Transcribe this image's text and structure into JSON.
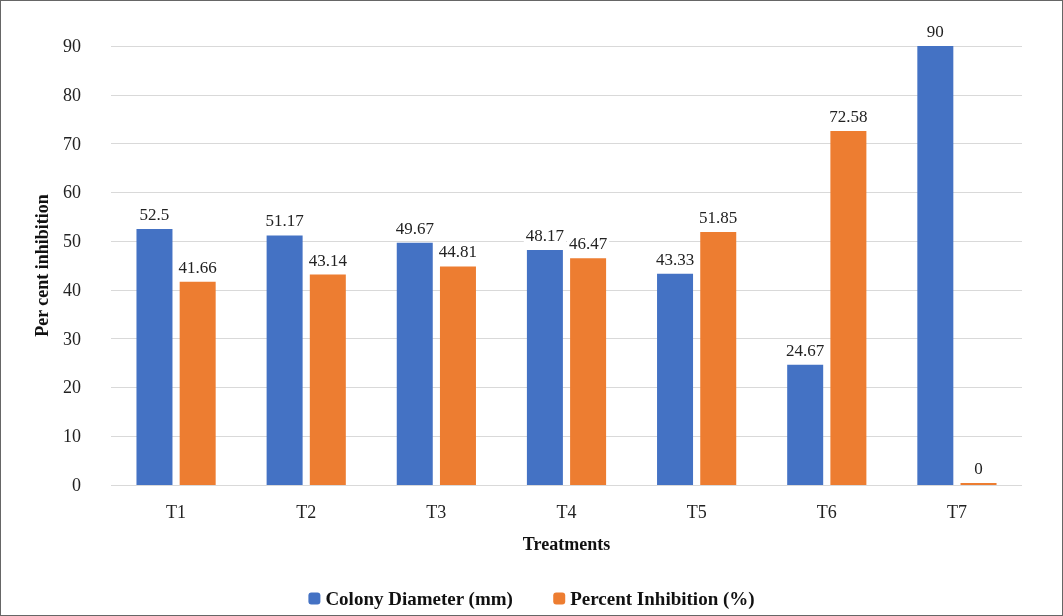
{
  "chart_data": {
    "type": "bar",
    "xlabel": "Treatments",
    "ylabel": "Per cent inhibition",
    "categories": [
      "T1",
      "T2",
      "T3",
      "T4",
      "T5",
      "T6",
      "T7"
    ],
    "series": [
      {
        "name": "Colony Diameter (mm)",
        "color": "#4472c4",
        "values": [
          52.5,
          51.17,
          49.67,
          48.17,
          43.33,
          24.67,
          90
        ]
      },
      {
        "name": "Percent Inhibition (%)",
        "color": "#ed7d31",
        "values": [
          41.66,
          43.14,
          44.81,
          46.47,
          51.85,
          72.58,
          0
        ]
      }
    ],
    "ylim": [
      0,
      90
    ],
    "yticks": [
      0,
      10,
      20,
      30,
      40,
      50,
      60,
      70,
      80,
      90
    ],
    "grid": "y",
    "legend": "bottom",
    "data_labels": true
  }
}
